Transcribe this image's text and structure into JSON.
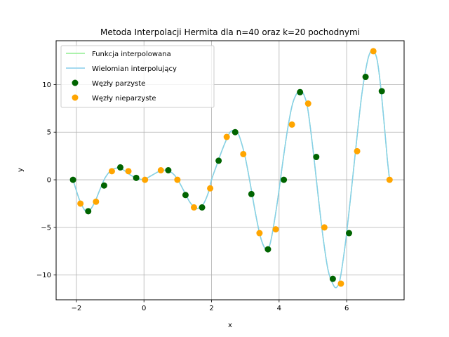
{
  "chart_data": {
    "type": "line",
    "title": "Metoda Interpolacji Hermita dla n=40 oraz k=20 pochodnymi",
    "xlabel": "x",
    "ylabel": "y",
    "xlim": [
      -2.6,
      7.7
    ],
    "ylim": [
      -12.6,
      14.6
    ],
    "xticks": [
      -2,
      0,
      2,
      4,
      6
    ],
    "yticks": [
      -10,
      -5,
      0,
      5,
      10
    ],
    "grid": true,
    "legend_position": "top-left",
    "series": [
      {
        "name": "Funkcja interpolowana",
        "kind": "line",
        "color": "#90ee90",
        "x": [
          -2.1,
          -1.95,
          -1.85,
          -1.7,
          -1.6,
          -1.45,
          -1.3,
          -1.15,
          -1.0,
          -0.85,
          -0.7,
          -0.55,
          -0.4,
          -0.25,
          -0.1,
          0.0,
          0.15,
          0.3,
          0.45,
          0.6,
          0.75,
          0.9,
          1.05,
          1.2,
          1.35,
          1.5,
          1.6,
          1.75,
          1.9,
          2.0,
          2.15,
          2.3,
          2.45,
          2.55,
          2.65,
          2.75,
          2.85,
          3.0,
          3.15,
          3.3,
          3.45,
          3.6,
          3.7,
          3.8,
          3.95,
          4.1,
          4.25,
          4.4,
          4.55,
          4.65,
          4.75,
          4.85,
          5.0,
          5.15,
          5.3,
          5.45,
          5.6,
          5.7,
          5.8,
          5.9,
          6.0,
          6.15,
          6.3,
          6.45,
          6.6,
          6.7,
          6.8,
          6.9,
          7.0,
          7.1,
          7.2,
          7.27
        ],
        "y": [
          0,
          -1.7,
          -2.6,
          -3.4,
          -3.2,
          -2.3,
          -1.0,
          0.2,
          0.9,
          1.2,
          1.2,
          0.9,
          0.5,
          0.2,
          0.05,
          0,
          0.3,
          0.6,
          0.9,
          1.0,
          0.9,
          0.5,
          -0.3,
          -1.3,
          -2.3,
          -2.9,
          -3.0,
          -2.6,
          -1.4,
          0,
          1.5,
          3.0,
          4.3,
          5.0,
          5.2,
          5.1,
          4.3,
          2.3,
          -0.5,
          -3.5,
          -6.0,
          -7.3,
          -7.1,
          -5.6,
          -2.3,
          1.6,
          5.3,
          8.0,
          9.2,
          9.3,
          8.8,
          7.4,
          3.3,
          -1.5,
          -6.0,
          -9.5,
          -11.0,
          -11.3,
          -10.5,
          -8.3,
          -5.6,
          -0.7,
          4.3,
          9.0,
          12.2,
          13.4,
          13.5,
          12.6,
          10.0,
          6.3,
          2.3,
          0
        ]
      },
      {
        "name": "Wielomian interpolujący",
        "kind": "line",
        "color": "#87ceeb",
        "x": [
          -2.1,
          -1.95,
          -1.85,
          -1.7,
          -1.6,
          -1.45,
          -1.3,
          -1.15,
          -1.0,
          -0.85,
          -0.7,
          -0.55,
          -0.4,
          -0.25,
          -0.1,
          0.0,
          0.15,
          0.3,
          0.45,
          0.6,
          0.75,
          0.9,
          1.05,
          1.2,
          1.35,
          1.5,
          1.6,
          1.75,
          1.9,
          2.0,
          2.15,
          2.3,
          2.45,
          2.55,
          2.65,
          2.75,
          2.85,
          3.0,
          3.15,
          3.3,
          3.45,
          3.6,
          3.7,
          3.8,
          3.95,
          4.1,
          4.25,
          4.4,
          4.55,
          4.65,
          4.75,
          4.85,
          5.0,
          5.15,
          5.3,
          5.45,
          5.6,
          5.7,
          5.8,
          5.9,
          6.0,
          6.15,
          6.3,
          6.45,
          6.6,
          6.7,
          6.8,
          6.9,
          7.0,
          7.1,
          7.2,
          7.27
        ],
        "y": [
          0,
          -1.7,
          -2.6,
          -3.4,
          -3.2,
          -2.3,
          -1.0,
          0.2,
          0.9,
          1.2,
          1.2,
          0.9,
          0.5,
          0.2,
          0.05,
          0,
          0.3,
          0.6,
          0.9,
          1.0,
          0.9,
          0.5,
          -0.3,
          -1.3,
          -2.3,
          -2.9,
          -3.0,
          -2.6,
          -1.4,
          0,
          1.5,
          3.0,
          4.3,
          5.0,
          5.2,
          5.1,
          4.3,
          2.3,
          -0.5,
          -3.5,
          -6.0,
          -7.3,
          -7.1,
          -5.6,
          -2.3,
          1.6,
          5.3,
          8.0,
          9.2,
          9.3,
          8.8,
          7.4,
          3.3,
          -1.5,
          -6.0,
          -9.5,
          -11.0,
          -11.3,
          -10.5,
          -8.3,
          -5.6,
          -0.7,
          4.3,
          9.0,
          12.2,
          13.4,
          13.5,
          12.6,
          10.0,
          6.3,
          2.3,
          0
        ]
      },
      {
        "name": "Węzły parzyste",
        "kind": "scatter",
        "color": "#006400",
        "x": [
          -2.1,
          -1.65,
          -1.18,
          -0.7,
          -0.23,
          0.72,
          1.23,
          1.72,
          2.21,
          2.7,
          3.18,
          3.67,
          4.14,
          4.62,
          5.1,
          5.59,
          6.07,
          6.56,
          7.04
        ],
        "y": [
          0,
          -3.3,
          -0.6,
          1.3,
          0.2,
          1.0,
          -1.6,
          -2.9,
          2.0,
          5.0,
          -1.5,
          -7.3,
          0,
          9.2,
          2.4,
          -10.4,
          -5.6,
          10.8,
          9.3
        ]
      },
      {
        "name": "Węzły nieparzyste",
        "kind": "scatter",
        "color": "#ffa500",
        "x": [
          -1.88,
          -1.42,
          -0.95,
          -0.46,
          0.03,
          0.5,
          0.99,
          1.48,
          1.96,
          2.45,
          2.94,
          3.42,
          3.9,
          4.38,
          4.86,
          5.34,
          5.83,
          6.31,
          6.79,
          7.27
        ],
        "y": [
          -2.5,
          -2.3,
          0.9,
          0.9,
          0,
          1.0,
          0,
          -2.9,
          -0.9,
          4.5,
          2.7,
          -5.6,
          -5.2,
          5.8,
          8.0,
          -5.0,
          -10.9,
          3.0,
          13.5,
          0
        ]
      }
    ]
  }
}
